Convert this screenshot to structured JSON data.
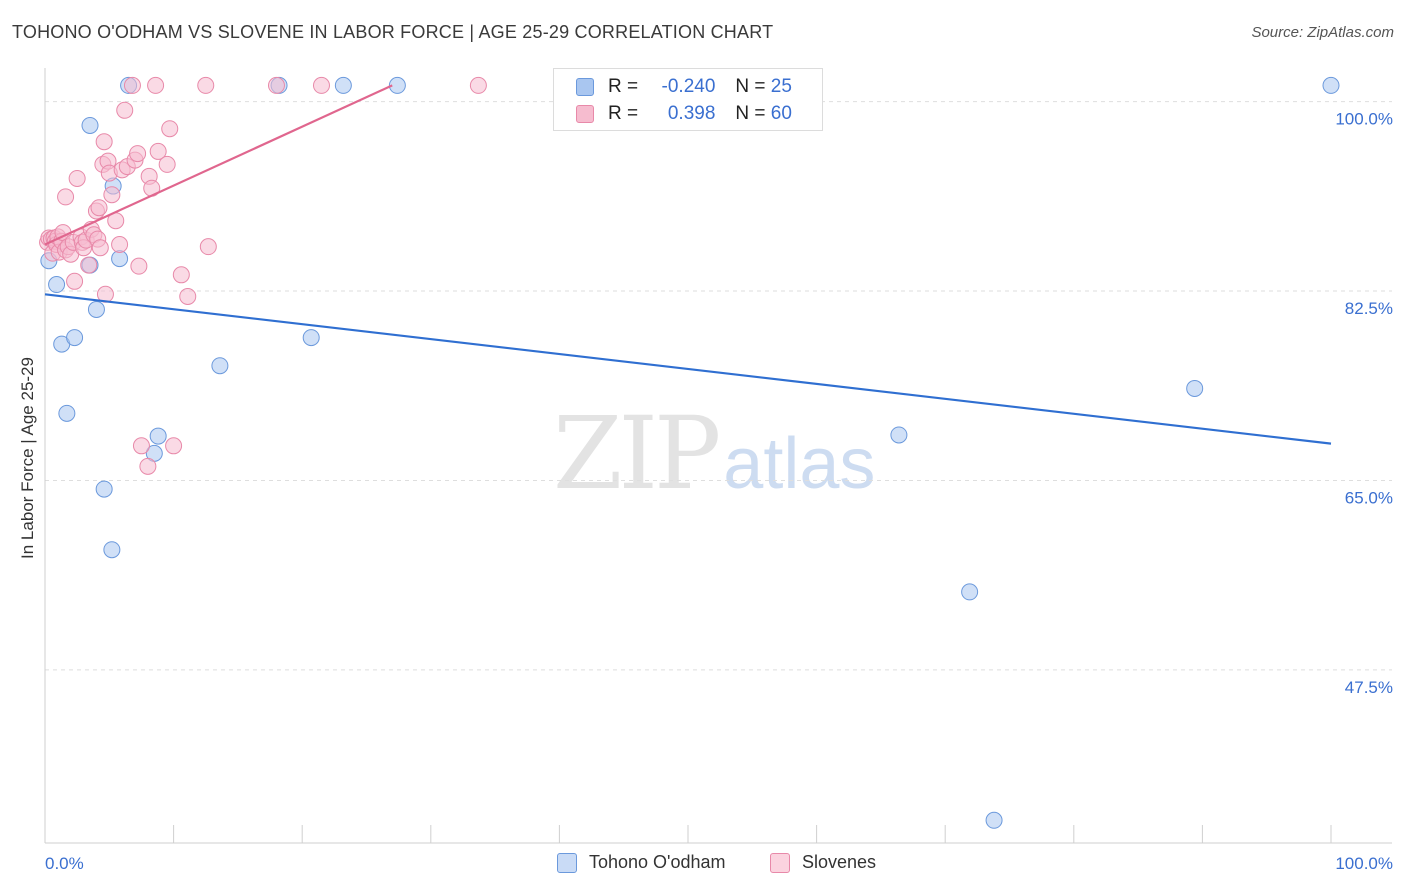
{
  "title": "TOHONO O'ODHAM VS SLOVENE IN LABOR FORCE | AGE 25-29 CORRELATION CHART",
  "source": "Source: ZipAtlas.com",
  "watermark": {
    "zip": "ZIP",
    "atlas": "atlas"
  },
  "stats": [
    {
      "r_label": "R =",
      "r_value": "-0.240",
      "n_label": "N =",
      "n_value": "25",
      "color": "#a9c6f0",
      "border": "#6b99dc"
    },
    {
      "r_label": "R =",
      "r_value": "0.398",
      "n_label": "N =",
      "n_value": "60",
      "color": "#f6bccf",
      "border": "#e889a9"
    }
  ],
  "legend": [
    {
      "label": "Tohono O'odham",
      "color": "#c9dbf6",
      "border": "#6b99dc"
    },
    {
      "label": "Slovenes",
      "color": "#fbd3df",
      "border": "#e889a9"
    }
  ],
  "chart_data": {
    "type": "scatter",
    "title": "TOHONO O'ODHAM VS SLOVENE IN LABOR FORCE | AGE 25-29 CORRELATION CHART",
    "xlabel": "",
    "ylabel": "In Labor Force | Age 25-29",
    "xlim": [
      0,
      100
    ],
    "ylim": [
      31.5,
      102
    ],
    "x_tick_labels": [
      {
        "value": 0,
        "label": "0.0%"
      },
      {
        "value": 100,
        "label": "100.0%"
      }
    ],
    "y_ticks": [
      {
        "value": 100,
        "label": "100.0%"
      },
      {
        "value": 82.5,
        "label": "82.5%"
      },
      {
        "value": 65,
        "label": "65.0%"
      },
      {
        "value": 47.5,
        "label": "47.5%"
      }
    ],
    "grid": true,
    "series": [
      {
        "name": "Tohono O'odham",
        "color": "#a9c6f0",
        "edge": "#6b99dc",
        "trend": {
          "x": [
            0,
            100
          ],
          "y": [
            82.2,
            68.4
          ],
          "color": "#2f6fd1"
        },
        "points": [
          [
            0.3,
            85.3
          ],
          [
            0.9,
            83.1
          ],
          [
            1.3,
            77.6
          ],
          [
            1.7,
            71.2
          ],
          [
            2.3,
            78.2
          ],
          [
            3.5,
            84.9
          ],
          [
            3.5,
            97.8
          ],
          [
            4.0,
            80.8
          ],
          [
            4.6,
            64.2
          ],
          [
            5.2,
            58.6
          ],
          [
            5.3,
            92.2
          ],
          [
            5.8,
            85.5
          ],
          [
            6.5,
            101.5
          ],
          [
            8.5,
            67.5
          ],
          [
            8.8,
            69.1
          ],
          [
            13.6,
            75.6
          ],
          [
            18.2,
            101.5
          ],
          [
            20.7,
            78.2
          ],
          [
            23.2,
            101.5
          ],
          [
            27.4,
            101.5
          ],
          [
            66.4,
            69.2
          ],
          [
            71.9,
            54.7
          ],
          [
            73.8,
            33.6
          ],
          [
            89.4,
            73.5
          ],
          [
            100.0,
            101.5
          ]
        ]
      },
      {
        "name": "Slovenes",
        "color": "#f6bccf",
        "edge": "#e889a9",
        "trend": {
          "x": [
            0,
            27
          ],
          "y": [
            86.8,
            101.5
          ],
          "color": "#e0668e"
        },
        "points": [
          [
            0.2,
            87.0
          ],
          [
            0.3,
            87.4
          ],
          [
            0.5,
            87.3
          ],
          [
            0.6,
            86.0
          ],
          [
            0.7,
            87.4
          ],
          [
            0.8,
            87.1
          ],
          [
            0.9,
            86.8
          ],
          [
            1.0,
            87.5
          ],
          [
            1.1,
            86.1
          ],
          [
            1.3,
            87.1
          ],
          [
            1.4,
            87.9
          ],
          [
            1.6,
            86.3
          ],
          [
            1.6,
            91.2
          ],
          [
            1.8,
            86.6
          ],
          [
            2.0,
            85.9
          ],
          [
            2.2,
            87.0
          ],
          [
            2.3,
            83.4
          ],
          [
            2.5,
            92.9
          ],
          [
            2.8,
            87.5
          ],
          [
            2.9,
            87.0
          ],
          [
            3.0,
            86.5
          ],
          [
            3.2,
            87.2
          ],
          [
            3.4,
            84.9
          ],
          [
            3.6,
            88.2
          ],
          [
            3.8,
            87.7
          ],
          [
            4.0,
            89.9
          ],
          [
            4.1,
            87.3
          ],
          [
            4.2,
            90.2
          ],
          [
            4.3,
            86.5
          ],
          [
            4.5,
            94.2
          ],
          [
            4.6,
            96.3
          ],
          [
            4.7,
            82.2
          ],
          [
            4.9,
            94.5
          ],
          [
            5.0,
            93.4
          ],
          [
            5.2,
            91.4
          ],
          [
            5.5,
            89.0
          ],
          [
            5.8,
            86.8
          ],
          [
            6.0,
            93.7
          ],
          [
            6.2,
            99.2
          ],
          [
            6.4,
            94.0
          ],
          [
            6.8,
            101.5
          ],
          [
            7.0,
            94.6
          ],
          [
            7.2,
            95.2
          ],
          [
            7.3,
            84.8
          ],
          [
            7.5,
            68.2
          ],
          [
            8.0,
            66.3
          ],
          [
            8.1,
            93.1
          ],
          [
            8.3,
            92.0
          ],
          [
            8.6,
            101.5
          ],
          [
            8.8,
            95.4
          ],
          [
            9.5,
            94.2
          ],
          [
            9.7,
            97.5
          ],
          [
            10.0,
            68.2
          ],
          [
            10.6,
            84.0
          ],
          [
            11.1,
            82.0
          ],
          [
            12.5,
            101.5
          ],
          [
            12.7,
            86.6
          ],
          [
            18.0,
            101.5
          ],
          [
            21.5,
            101.5
          ],
          [
            33.7,
            101.5
          ]
        ]
      }
    ]
  }
}
